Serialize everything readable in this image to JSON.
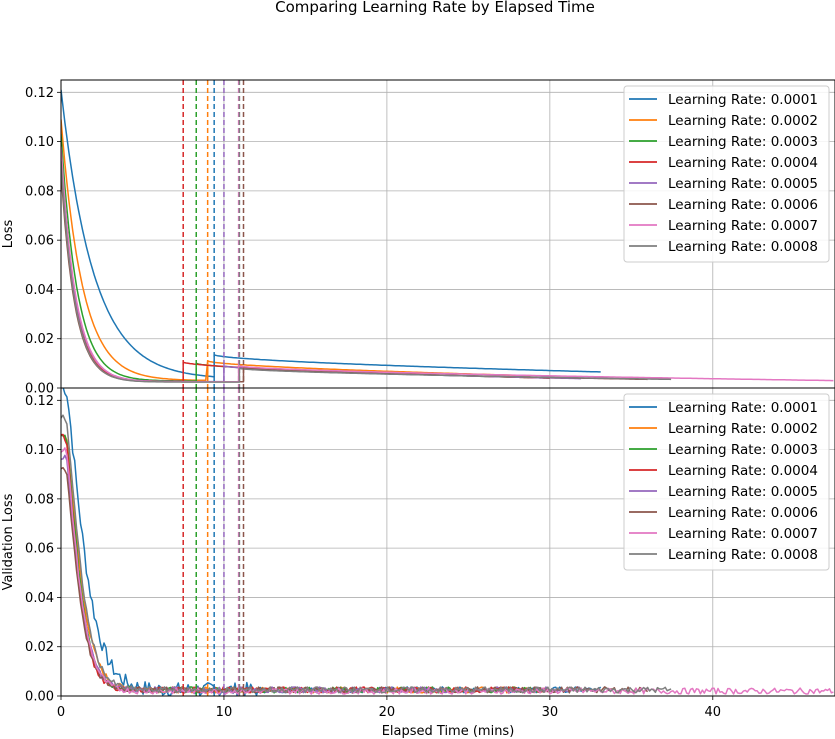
{
  "chart_data": {
    "type": "line",
    "title": "Comparing Learning Rate by Elapsed Time",
    "xlabel": "Elapsed Time (mins)",
    "xlim": [
      0,
      47.5
    ],
    "xticks": [
      0,
      10,
      20,
      30,
      40
    ],
    "grid": true,
    "series": [
      {
        "name": "Learning Rate: 0.0001",
        "color": "#1f77b4",
        "end": 33.2,
        "vline": 9.4
      },
      {
        "name": "Learning Rate: 0.0002",
        "color": "#ff7f0e",
        "end": 28.8,
        "vline": 9.0
      },
      {
        "name": "Learning Rate: 0.0003",
        "color": "#2ca02c",
        "end": 30.0,
        "vline": 8.3
      },
      {
        "name": "Learning Rate: 0.0004",
        "color": "#d62728",
        "end": 30.0,
        "vline": 7.5
      },
      {
        "name": "Learning Rate: 0.0005",
        "color": "#9467bd",
        "end": 32.0,
        "vline": 10.0
      },
      {
        "name": "Learning Rate: 0.0006",
        "color": "#8c564b",
        "end": 36.0,
        "vline": 11.2
      },
      {
        "name": "Learning Rate: 0.0007",
        "color": "#e377c2",
        "end": 47.5,
        "vline": 10.9
      },
      {
        "name": "Learning Rate: 0.0008",
        "color": "#7f7f7f",
        "end": 37.5,
        "vline": 10.95
      }
    ],
    "panels": [
      {
        "ylabel": "Loss",
        "ylim": [
          0,
          0.125
        ],
        "yticks": [
          "0.00",
          "0.02",
          "0.04",
          "0.06",
          "0.08",
          "0.10",
          "0.12"
        ],
        "start": [
          0.121,
          0.109,
          0.103,
          0.094,
          0.095,
          0.088,
          0.098,
          0.092
        ],
        "decay": [
          2.0,
          1.3,
          1.0,
          0.85,
          0.9,
          0.85,
          0.9,
          0.85
        ],
        "floor": [
          0.0035,
          0.003,
          0.0028,
          0.0027,
          0.0026,
          0.0025,
          0.0025,
          0.0024
        ],
        "restart": [
          0.0135,
          0.011,
          0.01,
          0.0105,
          0.009,
          0.0085,
          0.009,
          0.008
        ],
        "final": [
          0.0065,
          0.005,
          0.004,
          0.004,
          0.0038,
          0.0035,
          0.003,
          0.0035
        ]
      },
      {
        "ylabel": "Validation Loss",
        "ylim": [
          0,
          0.125
        ],
        "yticks": [
          "0.00",
          "0.02",
          "0.04",
          "0.06",
          "0.08",
          "0.10",
          "0.12"
        ],
        "start": [
          0.125,
          0.106,
          0.105,
          0.105,
          0.097,
          0.092,
          0.1,
          0.113
        ],
        "decay": [
          1.5,
          1.1,
          1.0,
          0.9,
          1.0,
          0.95,
          1.0,
          1.1
        ],
        "floor": [
          0.0025,
          0.0025,
          0.0025,
          0.0025,
          0.0025,
          0.0025,
          0.002,
          0.0025
        ],
        "noise": 0.0012
      }
    ]
  }
}
